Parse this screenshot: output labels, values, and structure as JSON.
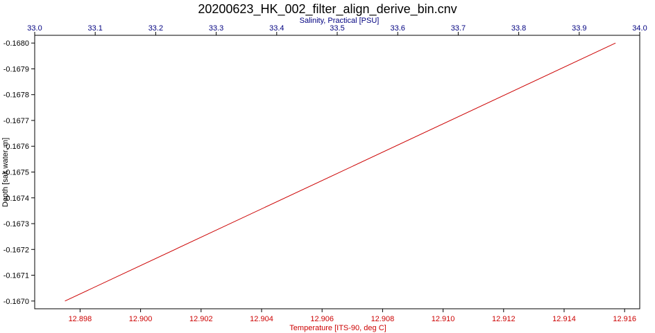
{
  "chart_data": {
    "type": "line",
    "title": "20200623_HK_002_filter_align_derive_bin.cnv",
    "top_axis": {
      "label": "Salinity, Practical [PSU]",
      "range": [
        33.0,
        34.0
      ],
      "ticks": [
        33.0,
        33.1,
        33.2,
        33.3,
        33.4,
        33.5,
        33.6,
        33.7,
        33.8,
        33.9,
        34.0
      ],
      "tick_labels": [
        "33.0",
        "33.1",
        "33.2",
        "33.3",
        "33.4",
        "33.5",
        "33.6",
        "33.7",
        "33.8",
        "33.9",
        "34.0"
      ],
      "color": "#000080"
    },
    "bottom_axis": {
      "label": "Temperature [ITS-90, deg C]",
      "range": [
        12.8965,
        12.9165
      ],
      "ticks": [
        12.898,
        12.9,
        12.902,
        12.904,
        12.906,
        12.908,
        12.91,
        12.912,
        12.914,
        12.916
      ],
      "tick_labels": [
        "12.898",
        "12.900",
        "12.902",
        "12.904",
        "12.906",
        "12.908",
        "12.910",
        "12.912",
        "12.914",
        "12.916"
      ],
      "color": "#cc0000"
    },
    "left_axis": {
      "label": "Depth [salt water, m]",
      "range": [
        -0.16697,
        -0.16803
      ],
      "ticks": [
        -0.168,
        -0.1679,
        -0.1678,
        -0.1677,
        -0.1676,
        -0.1675,
        -0.1674,
        -0.1673,
        -0.1672,
        -0.1671,
        -0.167
      ],
      "tick_labels": [
        "-0.1680",
        "-0.1679",
        "-0.1678",
        "-0.1677",
        "-0.1676",
        "-0.1675",
        "-0.1674",
        "-0.1673",
        "-0.1672",
        "-0.1671",
        "-0.1670"
      ],
      "color": "#000000"
    },
    "grid": false,
    "series": [
      {
        "x_axis": "bottom",
        "color": "#cc0000",
        "points": [
          {
            "x": 12.8975,
            "y": -0.167
          },
          {
            "x": 12.9157,
            "y": -0.168
          }
        ]
      }
    ]
  }
}
